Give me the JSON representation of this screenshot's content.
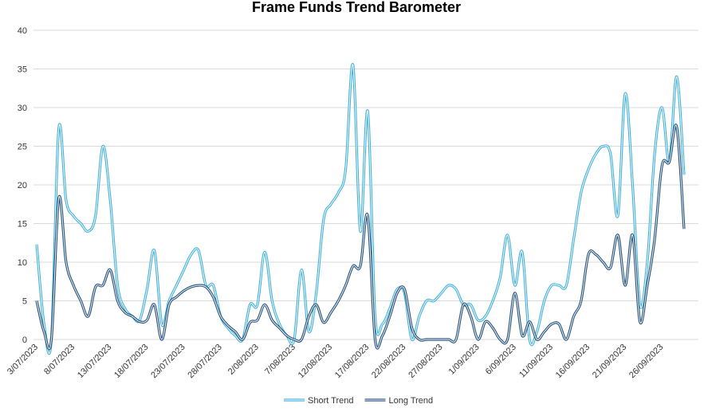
{
  "chart_data": {
    "type": "line",
    "title": "Frame Funds Trend Barometer",
    "categories": [
      "3/07/2023",
      null,
      null,
      null,
      null,
      "8/07/2023",
      null,
      null,
      null,
      null,
      "13/07/2023",
      null,
      null,
      null,
      null,
      "18/07/2023",
      null,
      null,
      null,
      null,
      "23/07/2023",
      null,
      null,
      null,
      null,
      "28/07/2023",
      null,
      null,
      null,
      null,
      "2/08/2023",
      null,
      null,
      null,
      null,
      "7/08/2023",
      null,
      null,
      null,
      null,
      "12/08/2023",
      null,
      null,
      null,
      null,
      "17/08/2023",
      null,
      null,
      null,
      null,
      "22/08/2023",
      null,
      null,
      null,
      null,
      "27/08/2023",
      null,
      null,
      null,
      null,
      "1/09/2023",
      null,
      null,
      null,
      null,
      "6/09/2023",
      null,
      null,
      null,
      null,
      "11/09/2023",
      null,
      null,
      null,
      null,
      "16/09/2023",
      null,
      null,
      null,
      null,
      "21/09/2023",
      null,
      null,
      null,
      null,
      "26/09/2023",
      null,
      null,
      null
    ],
    "series": [
      {
        "name": "Short Trend",
        "color": "#3fb0dc",
        "values": [
          12.3,
          2,
          0,
          27.3,
          18,
          16,
          15,
          14,
          16,
          25,
          18,
          7,
          4,
          3,
          2.5,
          6.5,
          11.5,
          2,
          5,
          7,
          9,
          11,
          11.5,
          7,
          7,
          3,
          1.5,
          0.5,
          0,
          4.5,
          4.5,
          11.3,
          5,
          2,
          0.5,
          0,
          9,
          1,
          6,
          15.5,
          17.5,
          19,
          22,
          35.5,
          14,
          29.5,
          3,
          2,
          4,
          6.5,
          6,
          0,
          3,
          5,
          5,
          6,
          7,
          6.5,
          4.5,
          4.5,
          2.5,
          3,
          5,
          8,
          13.5,
          7,
          11.3,
          0,
          1,
          5,
          7,
          7,
          7,
          13,
          19,
          22,
          24,
          25,
          24,
          16,
          31.8,
          20,
          4.5,
          10,
          24,
          30,
          23,
          34,
          21.3
        ]
      },
      {
        "name": "Long Trend",
        "color": "#1f4e79",
        "values": [
          5,
          1,
          0,
          18.3,
          10,
          7,
          5,
          3,
          6.8,
          7,
          9,
          5,
          3.5,
          3,
          2.3,
          2.5,
          4.5,
          0,
          4.5,
          5.5,
          6.3,
          6.8,
          7,
          6.8,
          5.5,
          3,
          1.8,
          1,
          0,
          2.2,
          2.5,
          4.5,
          2.5,
          1.5,
          0.5,
          0,
          0,
          3,
          4.5,
          2.2,
          3.5,
          5,
          7,
          9.5,
          9.5,
          16,
          0,
          0.5,
          3,
          6,
          6.5,
          1.5,
          0,
          0,
          0,
          0,
          0,
          0,
          4.5,
          3,
          0,
          2.3,
          1.5,
          0,
          0,
          6,
          0.5,
          2.3,
          0,
          1,
          2,
          2,
          0,
          3,
          5,
          11,
          11,
          10,
          9.3,
          13.5,
          7,
          13.5,
          2.3,
          7,
          13,
          22.5,
          23,
          27.5,
          14.3
        ]
      }
    ],
    "ylim": [
      0,
      40
    ],
    "yticks": [
      0,
      5,
      10,
      15,
      20,
      25,
      30,
      35,
      40
    ],
    "grid": true,
    "legend": "bottom"
  }
}
